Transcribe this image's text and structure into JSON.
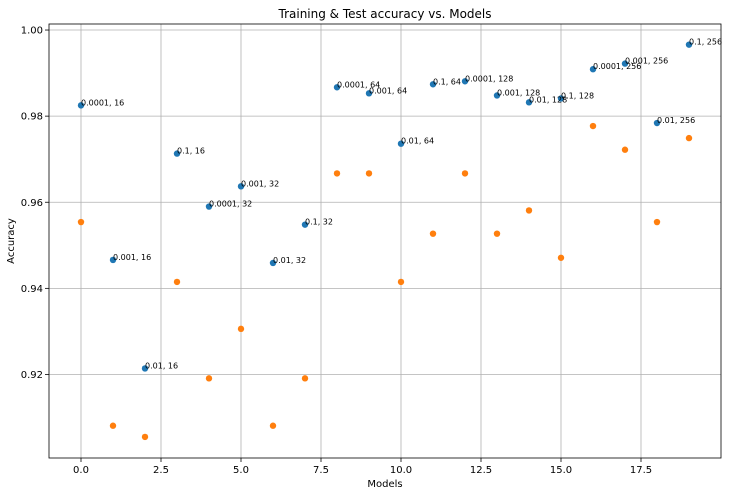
{
  "chart_data": {
    "type": "scatter",
    "title": "Training & Test accuracy vs. Models",
    "xlabel": "Models",
    "ylabel": "Accuracy",
    "xlim": [
      -1,
      20
    ],
    "ylim": [
      0.9006,
      1.0014
    ],
    "xticks": [
      0.0,
      2.5,
      5.0,
      7.5,
      10.0,
      12.5,
      15.0,
      17.5
    ],
    "xtick_labels": [
      "0.0",
      "2.5",
      "5.0",
      "7.5",
      "10.0",
      "12.5",
      "15.0",
      "17.5"
    ],
    "yticks": [
      0.92,
      0.94,
      0.96,
      0.98,
      1.0
    ],
    "ytick_labels": [
      "0.92",
      "0.94",
      "0.96",
      "0.98",
      "1.00"
    ],
    "grid": true,
    "series": [
      {
        "color": "#1f77b4",
        "x": [
          0,
          1,
          2,
          3,
          4,
          5,
          6,
          7,
          8,
          9,
          10,
          11,
          12,
          13,
          14,
          15,
          16,
          17,
          18,
          19
        ],
        "y": [
          0.9825,
          0.9466,
          0.9214,
          0.9713,
          0.959,
          0.9637,
          0.9459,
          0.9548,
          0.9867,
          0.9853,
          0.9736,
          0.9874,
          0.9881,
          0.9848,
          0.9832,
          0.9841,
          0.9909,
          0.9922,
          0.9784,
          0.9966
        ],
        "point_labels": [
          "0.0001, 16",
          "0.001, 16",
          "0.01, 16",
          "0.1, 16",
          "0.0001, 32",
          "0.001, 32",
          "0.01, 32",
          "0.1, 32",
          "0.0001, 64",
          "0.001, 64",
          "0.01, 64",
          "0.1, 64",
          "0.0001, 128",
          "0.001, 128",
          "0.01, 128",
          "0.1, 128",
          "0.0001, 256",
          "0.001, 256",
          "0.01, 256",
          "0.1, 256"
        ]
      },
      {
        "color": "#ff7f0e",
        "x": [
          0,
          1,
          2,
          3,
          4,
          5,
          6,
          7,
          8,
          9,
          10,
          11,
          12,
          13,
          14,
          15,
          16,
          17,
          18,
          19
        ],
        "y": [
          0.9554,
          0.9081,
          0.9055,
          0.9415,
          0.9191,
          0.9306,
          0.9081,
          0.9191,
          0.9667,
          0.9667,
          0.9415,
          0.9527,
          0.9667,
          0.9527,
          0.9581,
          0.9471,
          0.9777,
          0.9722,
          0.9554,
          0.9749
        ]
      }
    ]
  }
}
